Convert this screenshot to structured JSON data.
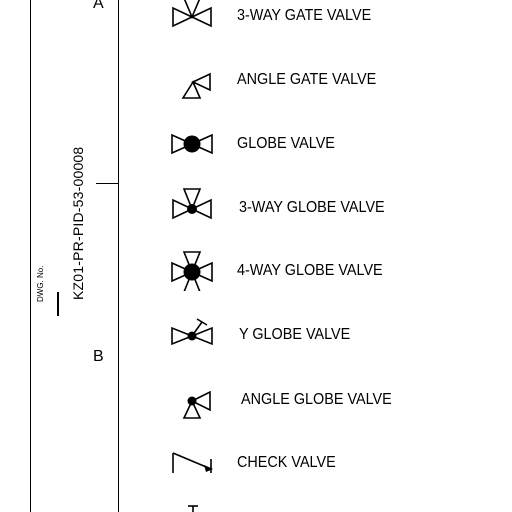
{
  "zones": {
    "a": "A",
    "b": "B"
  },
  "drawing": {
    "label": "DWG. No.",
    "number": "KZ01-PR-PID-53-00008"
  },
  "legend": [
    {
      "label": "3-WAY GATE VALVE",
      "icon": "three-way-gate-valve-icon"
    },
    {
      "label": "ANGLE GATE VALVE",
      "icon": "angle-gate-valve-icon"
    },
    {
      "label": "GLOBE VALVE",
      "icon": "globe-valve-icon"
    },
    {
      "label": "3-WAY GLOBE VALVE",
      "icon": "three-way-globe-valve-icon"
    },
    {
      "label": "4-WAY GLOBE VALVE",
      "icon": "four-way-globe-valve-icon"
    },
    {
      "label": "Y GLOBE VALVE",
      "icon": "y-globe-valve-icon"
    },
    {
      "label": "ANGLE GLOBE VALVE",
      "icon": "angle-globe-valve-icon"
    },
    {
      "label": "CHECK VALVE",
      "icon": "check-valve-icon"
    }
  ]
}
